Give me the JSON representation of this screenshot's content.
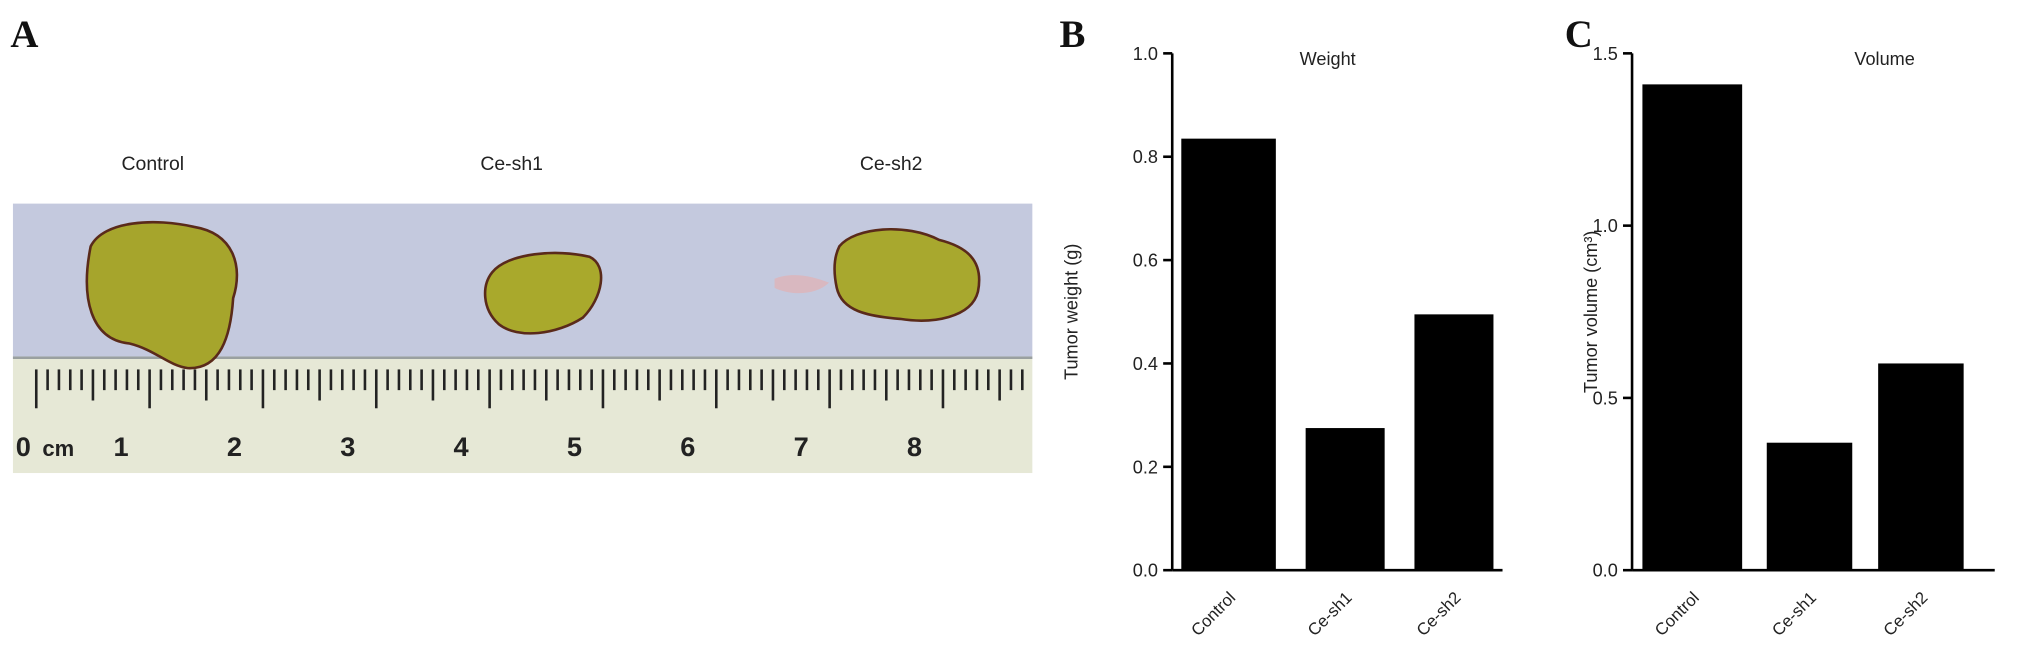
{
  "photo": {
    "panel": "A",
    "captions": [
      "Control",
      "Ce-sh1",
      "Ce-sh2"
    ],
    "ruler_labels": [
      "0",
      "cm",
      "1",
      "2",
      "3",
      "4",
      "5",
      "6",
      "7",
      "8"
    ]
  },
  "chart_data": [
    {
      "type": "bar",
      "panel": "B",
      "title": "Weight",
      "ylabel": "Tumor weight (g)",
      "categories": [
        "Control",
        "Ce-sh1",
        "Ce-sh2"
      ],
      "values": [
        0.835,
        0.275,
        0.495
      ],
      "color": "#000000",
      "ylim": [
        0,
        1
      ],
      "yticks": [
        {
          "value": 0,
          "label": "0.0"
        },
        0.2,
        0.4,
        0.6,
        0.8,
        {
          "value": 1,
          "label": "1.0"
        }
      ],
      "grid": false
    },
    {
      "type": "bar",
      "panel": "C",
      "title": "Volume",
      "ylabel": "Tumor volume (cm³)",
      "categories": [
        "Control",
        "Ce-sh1",
        "Ce-sh2"
      ],
      "values": [
        1.41,
        0.37,
        0.6
      ],
      "color": "#000000",
      "ylim": [
        0,
        1.5
      ],
      "yticks": [
        {
          "value": 0,
          "label": "0.0"
        },
        0.5,
        {
          "value": 1,
          "label": "1.0"
        },
        1.5
      ],
      "grid": false
    }
  ]
}
